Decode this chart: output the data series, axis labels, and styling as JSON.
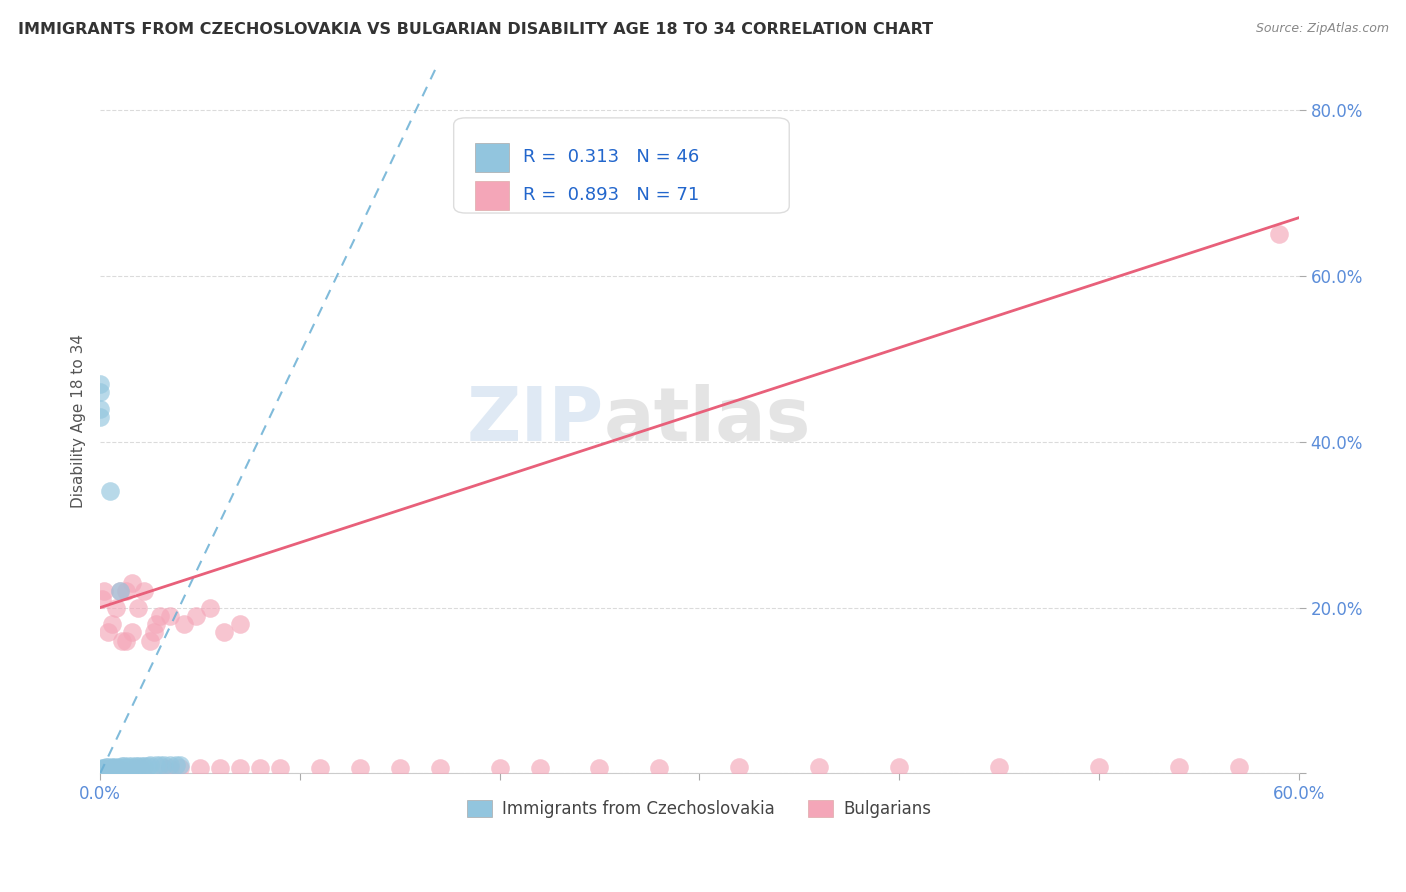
{
  "title": "IMMIGRANTS FROM CZECHOSLOVAKIA VS BULGARIAN DISABILITY AGE 18 TO 34 CORRELATION CHART",
  "source": "Source: ZipAtlas.com",
  "ylabel": "Disability Age 18 to 34",
  "xlim": [
    0,
    0.6
  ],
  "ylim": [
    0,
    0.85
  ],
  "blue_R": "0.313",
  "blue_N": "46",
  "pink_R": "0.893",
  "pink_N": "71",
  "legend_label1": "Immigrants from Czechoslovakia",
  "legend_label2": "Bulgarians",
  "watermark_zip": "ZIP",
  "watermark_atlas": "atlas",
  "blue_color": "#92c5de",
  "pink_color": "#f4a6b8",
  "blue_line_color": "#6aafd4",
  "pink_line_color": "#e8607a",
  "blue_scatter_x": [
    0.0,
    0.0,
    0.0,
    0.0,
    0.0,
    0.0,
    0.0,
    0.0,
    0.002,
    0.003,
    0.004,
    0.005,
    0.005,
    0.006,
    0.006,
    0.007,
    0.008,
    0.009,
    0.01,
    0.01,
    0.012,
    0.013,
    0.015,
    0.001,
    0.002,
    0.003,
    0.004,
    0.006,
    0.007,
    0.009,
    0.011,
    0.012,
    0.014,
    0.016,
    0.018,
    0.019,
    0.021,
    0.022,
    0.024,
    0.025,
    0.028,
    0.03,
    0.032,
    0.035,
    0.038,
    0.04
  ],
  "blue_scatter_y": [
    0.0,
    0.0,
    0.0,
    0.46,
    0.47,
    0.44,
    0.43,
    0.005,
    0.005,
    0.005,
    0.005,
    0.005,
    0.34,
    0.005,
    0.006,
    0.006,
    0.006,
    0.006,
    0.22,
    0.007,
    0.007,
    0.007,
    0.007,
    0.007,
    0.007,
    0.008,
    0.008,
    0.008,
    0.008,
    0.008,
    0.009,
    0.009,
    0.009,
    0.009,
    0.009,
    0.009,
    0.009,
    0.009,
    0.009,
    0.01,
    0.01,
    0.01,
    0.01,
    0.01,
    0.01,
    0.01
  ],
  "pink_scatter_x": [
    0.0,
    0.0,
    0.0,
    0.0,
    0.0,
    0.0,
    0.001,
    0.001,
    0.002,
    0.002,
    0.003,
    0.003,
    0.004,
    0.005,
    0.005,
    0.006,
    0.007,
    0.008,
    0.009,
    0.01,
    0.011,
    0.013,
    0.015,
    0.016,
    0.018,
    0.02,
    0.022,
    0.025,
    0.028,
    0.032,
    0.035,
    0.04,
    0.05,
    0.06,
    0.07,
    0.08,
    0.09,
    0.11,
    0.13,
    0.15,
    0.17,
    0.2,
    0.22,
    0.25,
    0.28,
    0.32,
    0.36,
    0.4,
    0.45,
    0.5,
    0.54,
    0.57,
    0.59,
    0.001,
    0.002,
    0.004,
    0.006,
    0.008,
    0.01,
    0.013,
    0.016,
    0.019,
    0.022,
    0.027,
    0.03,
    0.035,
    0.042,
    0.048,
    0.055,
    0.062,
    0.07
  ],
  "pink_scatter_y": [
    0.0,
    0.0,
    0.0,
    0.0,
    0.0,
    0.0,
    0.0,
    0.0,
    0.0,
    0.0,
    0.005,
    0.005,
    0.005,
    0.005,
    0.005,
    0.005,
    0.005,
    0.005,
    0.005,
    0.005,
    0.16,
    0.16,
    0.005,
    0.17,
    0.006,
    0.006,
    0.006,
    0.16,
    0.18,
    0.006,
    0.006,
    0.006,
    0.006,
    0.006,
    0.006,
    0.006,
    0.006,
    0.007,
    0.007,
    0.007,
    0.007,
    0.007,
    0.007,
    0.007,
    0.007,
    0.008,
    0.008,
    0.008,
    0.008,
    0.008,
    0.008,
    0.008,
    0.65,
    0.21,
    0.22,
    0.17,
    0.18,
    0.2,
    0.22,
    0.22,
    0.23,
    0.2,
    0.22,
    0.17,
    0.19,
    0.19,
    0.18,
    0.19,
    0.2,
    0.17,
    0.18
  ],
  "blue_trendline_x": [
    0.0,
    0.168
  ],
  "blue_trendline_y": [
    0.0,
    0.85
  ],
  "pink_trendline_x": [
    0.0,
    0.6
  ],
  "pink_trendline_y": [
    0.2,
    0.67
  ],
  "x_tick_positions": [
    0.0,
    0.1,
    0.2,
    0.3,
    0.4,
    0.5,
    0.6
  ],
  "x_tick_labels": [
    "0.0%",
    "",
    "",
    "",
    "",
    "",
    "60.0%"
  ],
  "y_tick_positions": [
    0.0,
    0.2,
    0.4,
    0.6,
    0.8
  ],
  "y_tick_labels": [
    "",
    "20.0%",
    "40.0%",
    "60.0%",
    "80.0%"
  ]
}
